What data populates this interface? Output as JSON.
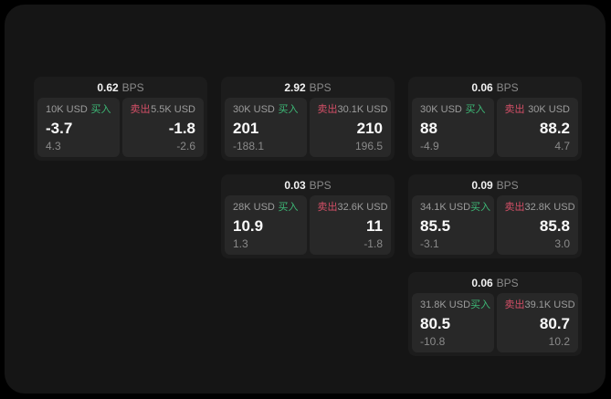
{
  "labels": {
    "buy": "买入",
    "sell": "卖出",
    "bps": "BPS"
  },
  "colors": {
    "background": "#000000",
    "panel": "#151515",
    "card": "#1c1c1c",
    "subpanel": "#282828",
    "buy_accent": "#3db876",
    "sell_accent": "#d44f67",
    "value_text": "#fafafa",
    "muted_text": "#8a8a8a"
  },
  "cards": [
    {
      "bps": "0.62",
      "buy": {
        "amount": "10K USD",
        "value": "-3.7",
        "delta": "4.3"
      },
      "sell": {
        "amount": "5.5K USD",
        "value": "-1.8",
        "delta": "-2.6"
      }
    },
    {
      "bps": "2.92",
      "buy": {
        "amount": "30K USD",
        "value": "201",
        "delta": "-188.1"
      },
      "sell": {
        "amount": "30.1K USD",
        "value": "210",
        "delta": "196.5"
      }
    },
    {
      "bps": "0.06",
      "buy": {
        "amount": "30K USD",
        "value": "88",
        "delta": "-4.9"
      },
      "sell": {
        "amount": "30K USD",
        "value": "88.2",
        "delta": "4.7"
      }
    },
    {
      "bps": "0.03",
      "buy": {
        "amount": "28K USD",
        "value": "10.9",
        "delta": "1.3"
      },
      "sell": {
        "amount": "32.6K USD",
        "value": "11",
        "delta": "-1.8"
      }
    },
    {
      "bps": "0.09",
      "buy": {
        "amount": "34.1K USD",
        "value": "85.5",
        "delta": "-3.1"
      },
      "sell": {
        "amount": "32.8K USD",
        "value": "85.8",
        "delta": "3.0"
      }
    },
    {
      "bps": "0.06",
      "buy": {
        "amount": "31.8K USD",
        "value": "80.5",
        "delta": "-10.8"
      },
      "sell": {
        "amount": "39.1K USD",
        "value": "80.7",
        "delta": "10.2"
      }
    }
  ]
}
